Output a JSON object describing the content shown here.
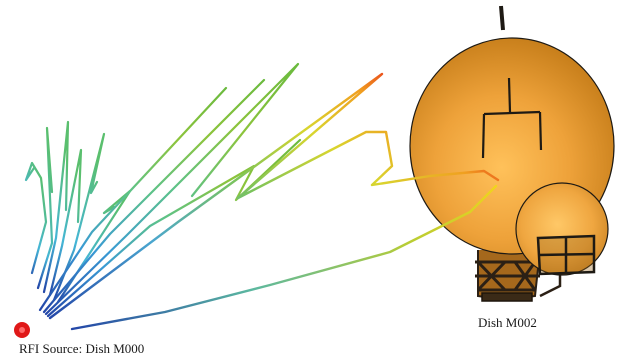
{
  "labels": {
    "source": "RFI Source: Dish M000",
    "dish": "Dish M002"
  },
  "colors": {
    "dish_main": "#e89a2a",
    "dish_dark": "#b86f12",
    "dish_light": "#ffc15a",
    "mount": "#2b2015",
    "source_dot": "#e01818",
    "ray_gradient": [
      "#2346a8",
      "#3a8fd4",
      "#4cc7c9",
      "#6cc25a",
      "#d8d82e",
      "#f2a21e",
      "#e8301a"
    ]
  },
  "icons": {
    "source_marker": "red-dot",
    "dish": "parabolic-dish-antenna"
  }
}
